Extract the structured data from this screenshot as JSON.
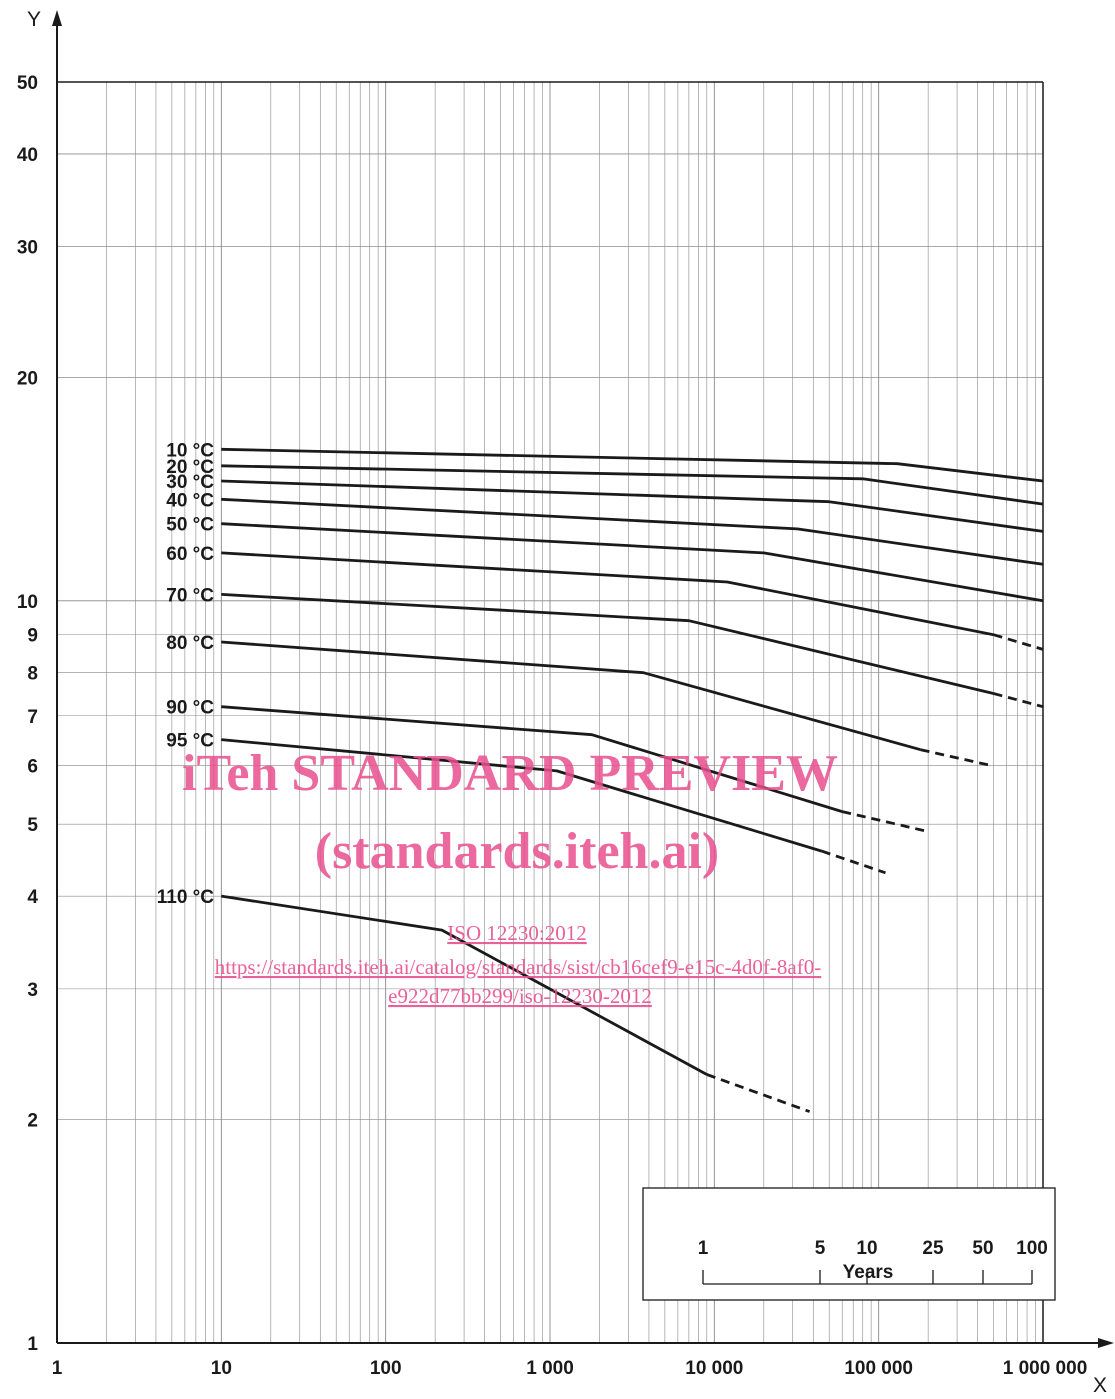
{
  "chart_data": {
    "type": "line",
    "x_axis": {
      "name": "X",
      "scale": "log",
      "range": [
        1,
        1000000
      ],
      "ticks": [
        {
          "value": 1,
          "label": "1"
        },
        {
          "value": 10,
          "label": "10"
        },
        {
          "value": 100,
          "label": "100"
        },
        {
          "value": 1000,
          "label": "1 000"
        },
        {
          "value": 10000,
          "label": "10 000"
        },
        {
          "value": 100000,
          "label": "100 000"
        },
        {
          "value": 1000000,
          "label": "1 000 000"
        }
      ]
    },
    "y_axis": {
      "name": "Y",
      "scale": "log",
      "range": [
        1,
        50
      ],
      "ticks": [
        {
          "value": 1,
          "label": "1"
        },
        {
          "value": 2,
          "label": "2"
        },
        {
          "value": 3,
          "label": "3"
        },
        {
          "value": 4,
          "label": "4"
        },
        {
          "value": 5,
          "label": "5"
        },
        {
          "value": 6,
          "label": "6"
        },
        {
          "value": 7,
          "label": "7"
        },
        {
          "value": 8,
          "label": "8"
        },
        {
          "value": 9,
          "label": "9"
        },
        {
          "value": 10,
          "label": "10"
        },
        {
          "value": 20,
          "label": "20"
        },
        {
          "value": 30,
          "label": "30"
        },
        {
          "value": 40,
          "label": "40"
        },
        {
          "value": 50,
          "label": "50"
        }
      ]
    },
    "grid": true,
    "series": [
      {
        "name": "10 °C",
        "solid": [
          [
            10,
            16.0
          ],
          [
            130000,
            15.3
          ],
          [
            1000000,
            14.5
          ]
        ],
        "dashed": []
      },
      {
        "name": "20 °C",
        "solid": [
          [
            10,
            15.2
          ],
          [
            80000,
            14.6
          ],
          [
            1000000,
            13.5
          ]
        ],
        "dashed": []
      },
      {
        "name": "30 °C",
        "solid": [
          [
            10,
            14.5
          ],
          [
            50000,
            13.6
          ],
          [
            1000000,
            12.4
          ]
        ],
        "dashed": []
      },
      {
        "name": "40 °C",
        "solid": [
          [
            10,
            13.7
          ],
          [
            32000,
            12.5
          ],
          [
            1000000,
            11.2
          ]
        ],
        "dashed": []
      },
      {
        "name": "50 °C",
        "solid": [
          [
            10,
            12.7
          ],
          [
            20000,
            11.6
          ],
          [
            1000000,
            10.0
          ]
        ],
        "dashed": []
      },
      {
        "name": "60 °C",
        "solid": [
          [
            10,
            11.6
          ],
          [
            12000,
            10.6
          ],
          [
            500000,
            9.0
          ]
        ],
        "dashed": [
          [
            500000,
            9.0
          ],
          [
            1000000,
            8.6
          ]
        ]
      },
      {
        "name": "70 °C",
        "solid": [
          [
            10,
            10.2
          ],
          [
            7000,
            9.4
          ],
          [
            500000,
            7.5
          ]
        ],
        "dashed": [
          [
            500000,
            7.5
          ],
          [
            1000000,
            7.2
          ]
        ]
      },
      {
        "name": "80 °C",
        "solid": [
          [
            10,
            8.8
          ],
          [
            3700,
            8.0
          ],
          [
            180000,
            6.3
          ]
        ],
        "dashed": [
          [
            180000,
            6.3
          ],
          [
            480000,
            6.0
          ]
        ]
      },
      {
        "name": "90 °C",
        "solid": [
          [
            10,
            7.2
          ],
          [
            1800,
            6.6
          ],
          [
            60000,
            5.2
          ]
        ],
        "dashed": [
          [
            60000,
            5.2
          ],
          [
            190000,
            4.9
          ]
        ]
      },
      {
        "name": "95 °C",
        "solid": [
          [
            10,
            6.5
          ],
          [
            1100,
            5.9
          ],
          [
            45000,
            4.6
          ]
        ],
        "dashed": [
          [
            45000,
            4.6
          ],
          [
            110000,
            4.3
          ]
        ]
      },
      {
        "name": "110 °C",
        "solid": [
          [
            10,
            4.0
          ],
          [
            220,
            3.6
          ],
          [
            9000,
            2.3
          ]
        ],
        "dashed": [
          [
            9000,
            2.3
          ],
          [
            38000,
            2.05
          ]
        ]
      }
    ],
    "inset": {
      "labels": [
        "1",
        "5",
        "10",
        "25",
        "50",
        "100"
      ],
      "title": "Years"
    }
  },
  "watermark": {
    "line1": "iTeh STANDARD PREVIEW",
    "line2": "(standards.iteh.ai)",
    "link1": "ISO 12230:2012",
    "link2": "https://standards.iteh.ai/catalog/standards/sist/cb16cef9-e15c-4d0f-8af0-",
    "link3": "e922d77bb299/iso-12230-2012"
  },
  "colors": {
    "line": "#1a1a1a",
    "grid": "#888888",
    "watermark": "#e8508e"
  }
}
